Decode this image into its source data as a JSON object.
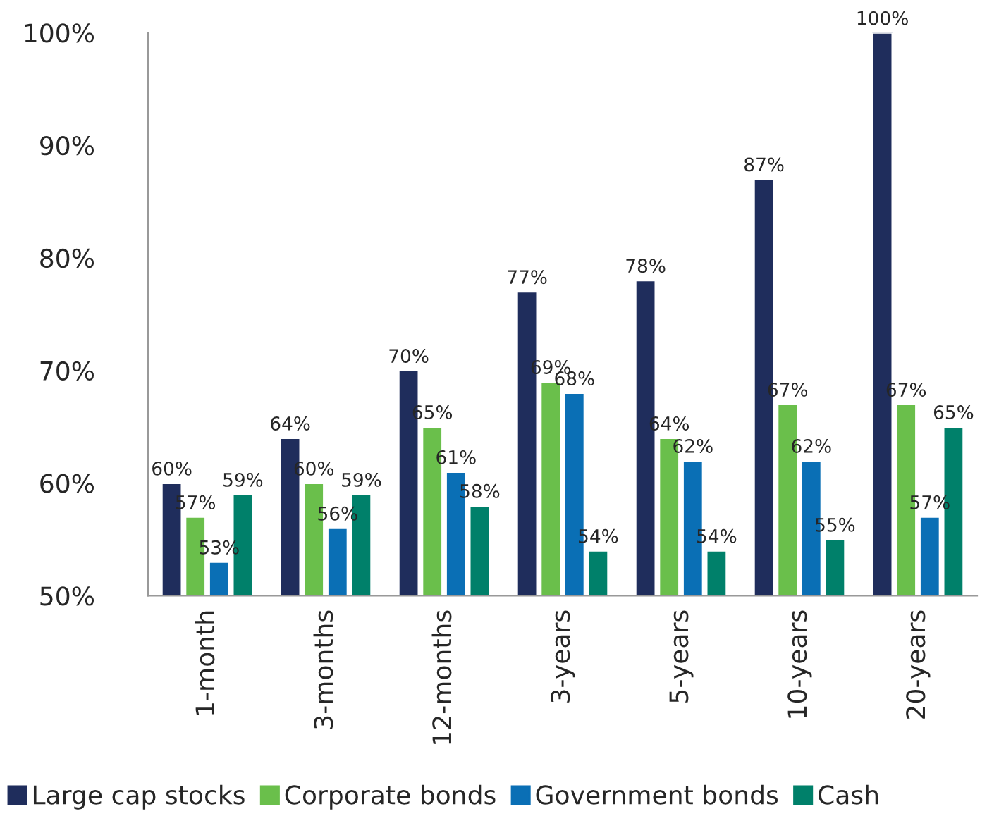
{
  "chart_data": {
    "type": "bar",
    "categories": [
      "1-month",
      "3-months",
      "12-months",
      "3-years",
      "5-years",
      "10-years",
      "20-years"
    ],
    "series": [
      {
        "name": "Large cap stocks",
        "color": "#1f2d5c",
        "values": [
          60,
          64,
          70,
          77,
          78,
          87,
          100
        ],
        "value_labels": [
          "60%",
          "64%",
          "70%",
          "77%",
          "78%",
          "87%",
          "100%"
        ]
      },
      {
        "name": "Corporate bonds",
        "color": "#6abf4b",
        "values": [
          57,
          60,
          65,
          69,
          64,
          67,
          67
        ],
        "value_labels": [
          "57%",
          "60%",
          "65%",
          "69%",
          "64%",
          "67%",
          "67%"
        ]
      },
      {
        "name": "Government bonds",
        "color": "#0a6fb5",
        "values": [
          53,
          56,
          61,
          68,
          62,
          62,
          57
        ],
        "value_labels": [
          "53%",
          "56%",
          "61%",
          "68%",
          "62%",
          "62%",
          "57%"
        ]
      },
      {
        "name": "Cash",
        "color": "#00806a",
        "values": [
          59,
          59,
          58,
          54,
          54,
          55,
          65
        ],
        "value_labels": [
          "59%",
          "59%",
          "58%",
          "54%",
          "54%",
          "55%",
          "65%"
        ]
      }
    ],
    "ylim": [
      50,
      100
    ],
    "yticks": [
      {
        "value": 50,
        "label": "50%"
      },
      {
        "value": 60,
        "label": "60%"
      },
      {
        "value": 70,
        "label": "70%"
      },
      {
        "value": 80,
        "label": "80%"
      },
      {
        "value": 90,
        "label": "90%"
      },
      {
        "value": 100,
        "label": "100%"
      }
    ],
    "grid": false,
    "legend": "bottom"
  }
}
